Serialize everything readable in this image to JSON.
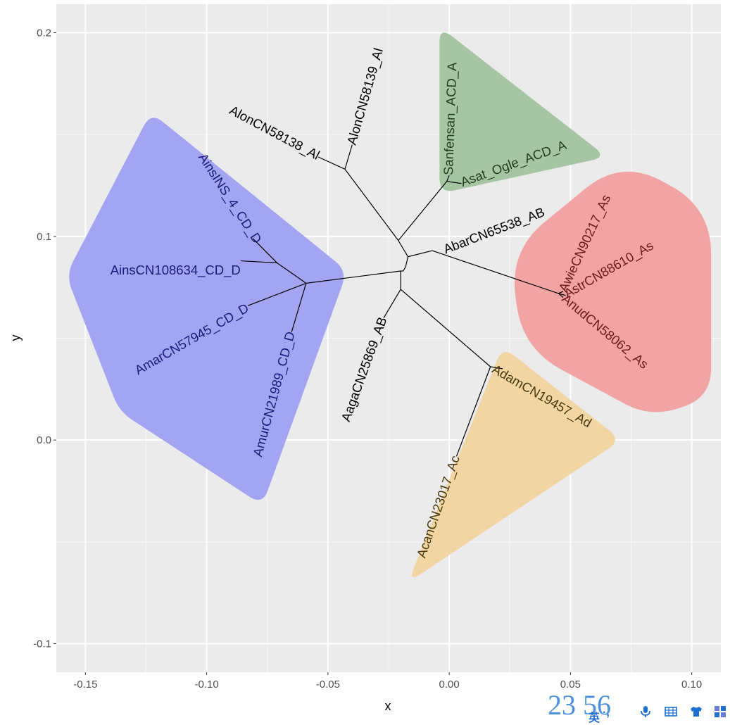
{
  "chart_data": {
    "type": "phylogenetic-tree",
    "xlabel": "x",
    "ylabel": "y",
    "xlim": [
      -0.162,
      0.112
    ],
    "ylim": [
      -0.114,
      0.214
    ],
    "x_ticks": [
      -0.15,
      -0.1,
      -0.05,
      0.0,
      0.05,
      0.1
    ],
    "x_tick_labels": [
      "-0.15",
      "-0.10",
      "-0.05",
      "0.00",
      "0.05",
      "0.10"
    ],
    "y_ticks": [
      -0.1,
      0.0,
      0.1,
      0.2
    ],
    "y_tick_labels": [
      "-0.1",
      "0.0",
      "0.1",
      "0.2"
    ],
    "groups": [
      {
        "name": "D",
        "color": "#a3a5f2",
        "text_color": "#1a1a7a",
        "hull": [
          [
            -0.158,
            0.081
          ],
          [
            -0.123,
            0.161
          ],
          [
            -0.042,
            0.083
          ],
          [
            -0.077,
            -0.032
          ],
          [
            -0.136,
            0.014
          ]
        ]
      },
      {
        "name": "A",
        "color": "#a5c5a3",
        "text_color": "#1f3d1f",
        "hull": [
          [
            -0.004,
            0.203
          ],
          [
            0.065,
            0.139
          ],
          [
            -0.004,
            0.121
          ]
        ]
      },
      {
        "name": "As",
        "color": "#f1a4a3",
        "text_color": "#6b1a1a",
        "hull": [
          [
            0.071,
            0.138
          ],
          [
            0.108,
            0.114
          ],
          [
            0.108,
            0.021
          ],
          [
            0.083,
            0.011
          ],
          [
            0.03,
            0.045
          ],
          [
            0.025,
            0.093
          ]
        ]
      },
      {
        "name": "Ad_Ac",
        "color": "#f1d6a3",
        "text_color": "#4a3a10",
        "hull": [
          [
            0.022,
            0.046
          ],
          [
            0.071,
            0.0
          ],
          [
            -0.017,
            -0.07
          ]
        ]
      }
    ],
    "edges": [
      [
        [
          -0.019,
          0.083
        ],
        [
          -0.018,
          0.085
        ]
      ],
      [
        [
          -0.018,
          0.085
        ],
        [
          -0.017,
          0.09
        ]
      ],
      [
        [
          -0.019,
          0.083
        ],
        [
          -0.02,
          0.083
        ]
      ],
      [
        [
          -0.02,
          0.083
        ],
        [
          -0.02,
          0.074
        ]
      ],
      [
        [
          -0.017,
          0.09
        ],
        [
          -0.007,
          0.093
        ]
      ],
      [
        [
          -0.007,
          0.093
        ],
        [
          0.045,
          0.072
        ]
      ],
      [
        [
          0.045,
          0.072
        ],
        [
          0.047,
          0.073
        ]
      ],
      [
        [
          0.045,
          0.072
        ],
        [
          0.048,
          0.071
        ]
      ],
      [
        [
          0.045,
          0.072
        ],
        [
          0.047,
          0.07
        ]
      ],
      [
        [
          -0.017,
          0.09
        ],
        [
          -0.021,
          0.098
        ]
      ],
      [
        [
          -0.021,
          0.098
        ],
        [
          -0.043,
          0.133
        ]
      ],
      [
        [
          -0.043,
          0.133
        ],
        [
          -0.054,
          0.139
        ]
      ],
      [
        [
          -0.043,
          0.133
        ],
        [
          -0.04,
          0.145
        ]
      ],
      [
        [
          -0.021,
          0.098
        ],
        [
          -0.001,
          0.127
        ]
      ],
      [
        [
          -0.001,
          0.127
        ],
        [
          0.0,
          0.13
        ]
      ],
      [
        [
          -0.001,
          0.127
        ],
        [
          0.005,
          0.126
        ]
      ],
      [
        [
          -0.02,
          0.083
        ],
        [
          -0.059,
          0.077
        ]
      ],
      [
        [
          -0.059,
          0.077
        ],
        [
          -0.071,
          0.087
        ]
      ],
      [
        [
          -0.071,
          0.087
        ],
        [
          -0.081,
          0.099
        ]
      ],
      [
        [
          -0.071,
          0.087
        ],
        [
          -0.086,
          0.088
        ]
      ],
      [
        [
          -0.059,
          0.077
        ],
        [
          -0.083,
          0.066
        ]
      ],
      [
        [
          -0.059,
          0.077
        ],
        [
          -0.065,
          0.053
        ]
      ],
      [
        [
          -0.02,
          0.074
        ],
        [
          -0.027,
          0.06
        ]
      ],
      [
        [
          -0.02,
          0.074
        ],
        [
          0.017,
          0.036
        ]
      ],
      [
        [
          0.017,
          0.036
        ],
        [
          0.022,
          0.035
        ]
      ],
      [
        [
          0.017,
          0.036
        ],
        [
          0.003,
          -0.008
        ]
      ]
    ],
    "tips": [
      {
        "label": "AlonCN58139_Al",
        "x": -0.04,
        "y": 0.145,
        "angle": -74,
        "anchor": "start",
        "group": ""
      },
      {
        "label": "AlonCN58138_Al",
        "x": -0.054,
        "y": 0.139,
        "angle": 28,
        "anchor": "end",
        "group": ""
      },
      {
        "label": "Sanfensan_ACD_A",
        "x": 0.0,
        "y": 0.13,
        "angle": -88,
        "anchor": "start",
        "group": "A"
      },
      {
        "label": "Asat_Ogle_ACD_A",
        "x": 0.005,
        "y": 0.126,
        "angle": -20,
        "anchor": "start",
        "group": "A"
      },
      {
        "label": "AbarCN65538_AB",
        "x": -0.002,
        "y": 0.093,
        "angle": -21,
        "anchor": "start",
        "group": ""
      },
      {
        "label": "AwieCN90217_As",
        "x": 0.047,
        "y": 0.073,
        "angle": -65,
        "anchor": "start",
        "group": "As"
      },
      {
        "label": "AstrCN88610_As",
        "x": 0.048,
        "y": 0.071,
        "angle": -30,
        "anchor": "start",
        "group": "As"
      },
      {
        "label": "AnudCN58062_As",
        "x": 0.047,
        "y": 0.07,
        "angle": 40,
        "anchor": "start",
        "group": "As"
      },
      {
        "label": "AdamCN19457_Ad",
        "x": 0.018,
        "y": 0.035,
        "angle": 30,
        "anchor": "start",
        "group": "Ad_Ac"
      },
      {
        "label": "AcanCN23017_Ac",
        "x": 0.003,
        "y": -0.008,
        "angle": -71,
        "anchor": "end",
        "group": "Ad_Ac"
      },
      {
        "label": "AagaCN25869_AB",
        "x": -0.027,
        "y": 0.06,
        "angle": -70,
        "anchor": "end",
        "group": ""
      },
      {
        "label": "AinsINS_4_CD_D",
        "x": -0.079,
        "y": 0.097,
        "angle": 57,
        "anchor": "end",
        "group": "D"
      },
      {
        "label": "AinsCN108634_CD_D",
        "x": -0.086,
        "y": 0.083,
        "angle": 0,
        "anchor": "end",
        "group": "D"
      },
      {
        "label": "AmarCN57945_CD_D",
        "x": -0.083,
        "y": 0.065,
        "angle": -30,
        "anchor": "end",
        "group": "D"
      },
      {
        "label": "AmurCN21989_CD_D",
        "x": -0.065,
        "y": 0.053,
        "angle": -75,
        "anchor": "end",
        "group": "D"
      }
    ]
  },
  "ime": {
    "clock": "23 56",
    "lang": "英",
    "punct": "·,"
  }
}
